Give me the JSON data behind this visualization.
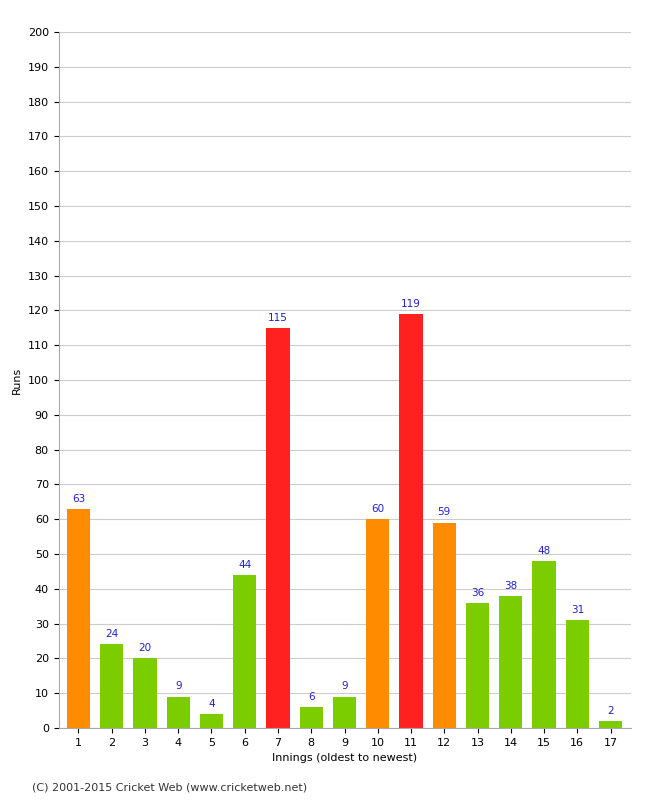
{
  "xlabel": "Innings (oldest to newest)",
  "ylabel": "Runs",
  "ylim": [
    0,
    200
  ],
  "yticks": [
    0,
    10,
    20,
    30,
    40,
    50,
    60,
    70,
    80,
    90,
    100,
    110,
    120,
    130,
    140,
    150,
    160,
    170,
    180,
    190,
    200
  ],
  "categories": [
    "1",
    "2",
    "3",
    "4",
    "5",
    "6",
    "7",
    "8",
    "9",
    "10",
    "11",
    "12",
    "13",
    "14",
    "15",
    "16",
    "17"
  ],
  "values": [
    63,
    24,
    20,
    9,
    4,
    44,
    115,
    6,
    9,
    60,
    119,
    59,
    36,
    38,
    48,
    31,
    2
  ],
  "bar_colors": [
    "#ff8c00",
    "#7ccd00",
    "#7ccd00",
    "#7ccd00",
    "#7ccd00",
    "#7ccd00",
    "#ff2020",
    "#7ccd00",
    "#7ccd00",
    "#ff8c00",
    "#ff2020",
    "#ff8c00",
    "#7ccd00",
    "#7ccd00",
    "#7ccd00",
    "#7ccd00",
    "#7ccd00"
  ],
  "annotation_color": "#2020cc",
  "annotation_fontsize": 7.5,
  "background_color": "#ffffff",
  "grid_color": "#cccccc",
  "footer": "(C) 2001-2015 Cricket Web (www.cricketweb.net)",
  "footer_fontsize": 8,
  "axis_label_fontsize": 8,
  "tick_fontsize": 8
}
